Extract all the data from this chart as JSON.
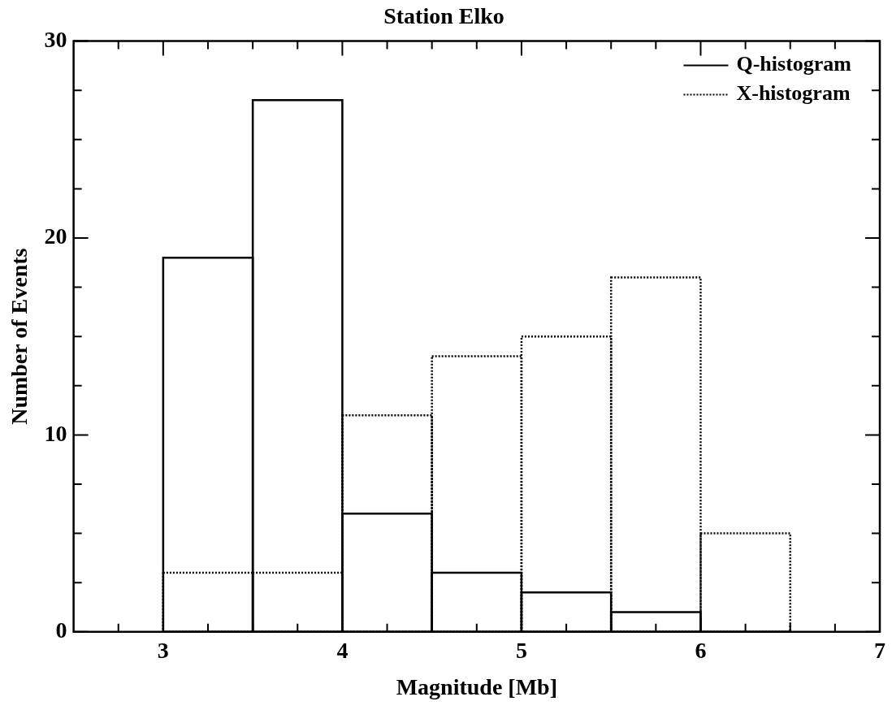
{
  "chart_data": {
    "type": "histogram",
    "title": "Station Elko",
    "xlabel": "Magnitude [Mb]",
    "ylabel": "Number of Events",
    "bins": [
      3,
      3.5,
      4,
      4.5,
      5,
      5.5,
      6,
      6.5
    ],
    "series": [
      {
        "name": "Q-histogram",
        "color": "#000000",
        "line_style": "solid",
        "values": [
          19,
          27,
          6,
          3,
          2,
          1,
          0
        ]
      },
      {
        "name": "X-histogram",
        "color": "#000000",
        "line_style": "dotted",
        "values": [
          3,
          3,
          11,
          14,
          15,
          18,
          5
        ]
      }
    ],
    "xlim": [
      2.5,
      7
    ],
    "xticks": [
      {
        "value": 2.75,
        "label": null
      },
      3,
      {
        "value": 3.25,
        "label": null
      },
      {
        "value": 3.5,
        "label": null
      },
      {
        "value": 3.75,
        "label": null
      },
      4,
      {
        "value": 4.25,
        "label": null
      },
      {
        "value": 4.5,
        "label": null
      },
      {
        "value": 4.75,
        "label": null
      },
      5,
      {
        "value": 5.25,
        "label": null
      },
      {
        "value": 5.5,
        "label": null
      },
      {
        "value": 5.75,
        "label": null
      },
      6,
      {
        "value": 6.25,
        "label": null
      },
      {
        "value": 6.5,
        "label": null
      },
      {
        "value": 6.75,
        "label": null
      },
      7
    ],
    "ylim": [
      0,
      30
    ],
    "yticks": [
      0,
      {
        "value": 2.5,
        "label": null
      },
      {
        "value": 5,
        "label": null
      },
      {
        "value": 7.5,
        "label": null
      },
      10,
      {
        "value": 12.5,
        "label": null
      },
      {
        "value": 15,
        "label": null
      },
      {
        "value": 17.5,
        "label": null
      },
      20,
      {
        "value": 22.5,
        "label": null
      },
      {
        "value": 25,
        "label": null
      },
      {
        "value": 27.5,
        "label": null
      },
      30
    ],
    "grid": false,
    "legend": "top right"
  }
}
